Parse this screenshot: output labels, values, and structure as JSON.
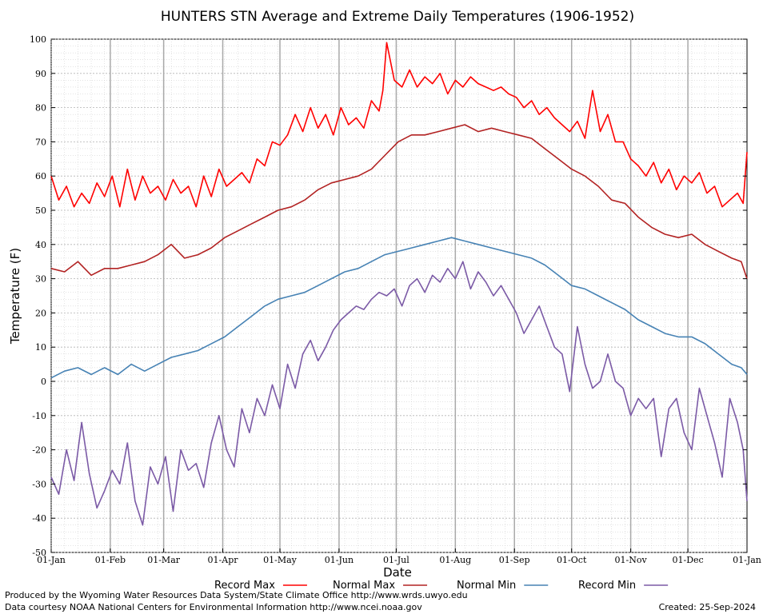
{
  "chart_data": {
    "type": "line",
    "title": "HUNTERS STN Average and Extreme Daily Temperatures (1906-1952)",
    "xlabel": "Date",
    "ylabel": "Temperature (F)",
    "ylim": [
      -50,
      100
    ],
    "yticks": [
      100,
      90,
      80,
      70,
      60,
      50,
      40,
      30,
      20,
      10,
      0,
      -10,
      -20,
      -30,
      -40,
      -50
    ],
    "xlim_day": [
      1,
      366
    ],
    "month_ticks": [
      {
        "label": "01-Jan",
        "day": 1
      },
      {
        "label": "01-Feb",
        "day": 32
      },
      {
        "label": "01-Mar",
        "day": 60
      },
      {
        "label": "01-Apr",
        "day": 91
      },
      {
        "label": "01-May",
        "day": 121
      },
      {
        "label": "01-Jun",
        "day": 152
      },
      {
        "label": "01-Jul",
        "day": 182
      },
      {
        "label": "01-Aug",
        "day": 213
      },
      {
        "label": "01-Sep",
        "day": 244
      },
      {
        "label": "01-Oct",
        "day": 274
      },
      {
        "label": "01-Nov",
        "day": 305
      },
      {
        "label": "01-Dec",
        "day": 335
      },
      {
        "label": "01-Jan",
        "day": 366
      }
    ],
    "grid": true,
    "legend_position": "bottom",
    "series": [
      {
        "name": "Record Max",
        "color": "#ff0000",
        "x": [
          1,
          5,
          9,
          13,
          17,
          21,
          25,
          29,
          33,
          37,
          41,
          45,
          49,
          53,
          57,
          61,
          65,
          69,
          73,
          77,
          81,
          85,
          89,
          93,
          97,
          101,
          105,
          109,
          113,
          117,
          121,
          125,
          129,
          133,
          137,
          141,
          145,
          149,
          153,
          157,
          161,
          165,
          169,
          173,
          175,
          177,
          181,
          185,
          189,
          193,
          197,
          201,
          205,
          209,
          213,
          217,
          221,
          225,
          229,
          233,
          237,
          241,
          245,
          249,
          253,
          257,
          261,
          265,
          269,
          273,
          277,
          281,
          285,
          289,
          293,
          297,
          301,
          305,
          309,
          313,
          317,
          321,
          325,
          329,
          333,
          337,
          341,
          345,
          349,
          353,
          357,
          361,
          364,
          366
        ],
        "values": [
          60,
          53,
          57,
          51,
          55,
          52,
          58,
          54,
          60,
          51,
          62,
          53,
          60,
          55,
          57,
          53,
          59,
          55,
          57,
          51,
          60,
          54,
          62,
          57,
          59,
          61,
          58,
          65,
          63,
          70,
          69,
          72,
          78,
          73,
          80,
          74,
          78,
          72,
          80,
          75,
          77,
          74,
          82,
          79,
          85,
          99,
          88,
          86,
          91,
          86,
          89,
          87,
          90,
          84,
          88,
          86,
          89,
          87,
          86,
          85,
          86,
          84,
          83,
          80,
          82,
          78,
          80,
          77,
          75,
          73,
          76,
          71,
          85,
          73,
          78,
          70,
          70,
          65,
          63,
          60,
          64,
          58,
          62,
          56,
          60,
          58,
          61,
          55,
          57,
          51,
          53,
          55,
          52,
          67
        ]
      },
      {
        "name": "Normal Max",
        "color": "#b22222",
        "x": [
          1,
          8,
          15,
          22,
          29,
          36,
          43,
          50,
          57,
          64,
          71,
          78,
          85,
          92,
          99,
          106,
          113,
          120,
          127,
          134,
          141,
          148,
          155,
          162,
          169,
          176,
          183,
          190,
          197,
          204,
          211,
          218,
          225,
          232,
          239,
          246,
          253,
          260,
          267,
          274,
          281,
          288,
          295,
          302,
          309,
          316,
          323,
          330,
          337,
          344,
          351,
          358,
          363,
          366
        ],
        "values": [
          33,
          32,
          35,
          31,
          33,
          33,
          34,
          35,
          37,
          40,
          36,
          37,
          39,
          42,
          44,
          46,
          48,
          50,
          51,
          53,
          56,
          58,
          59,
          60,
          62,
          66,
          70,
          72,
          72,
          73,
          74,
          75,
          73,
          74,
          73,
          72,
          71,
          68,
          65,
          62,
          60,
          57,
          53,
          52,
          48,
          45,
          43,
          42,
          43,
          40,
          38,
          36,
          35,
          30
        ]
      },
      {
        "name": "Normal Min",
        "color": "#4682b4",
        "x": [
          1,
          8,
          15,
          22,
          29,
          36,
          43,
          50,
          57,
          64,
          71,
          78,
          85,
          92,
          99,
          106,
          113,
          120,
          127,
          134,
          141,
          148,
          155,
          162,
          169,
          176,
          183,
          190,
          197,
          204,
          211,
          218,
          225,
          232,
          239,
          246,
          253,
          260,
          267,
          274,
          281,
          288,
          295,
          302,
          309,
          316,
          323,
          330,
          337,
          344,
          351,
          358,
          363,
          366
        ],
        "values": [
          1,
          3,
          4,
          2,
          4,
          2,
          5,
          3,
          5,
          7,
          8,
          9,
          11,
          13,
          16,
          19,
          22,
          24,
          25,
          26,
          28,
          30,
          32,
          33,
          35,
          37,
          38,
          39,
          40,
          41,
          42,
          41,
          40,
          39,
          38,
          37,
          36,
          34,
          31,
          28,
          27,
          25,
          23,
          21,
          18,
          16,
          14,
          13,
          13,
          11,
          8,
          5,
          4,
          2
        ]
      },
      {
        "name": "Record Min",
        "color": "#7b5aa6",
        "x": [
          1,
          5,
          9,
          13,
          17,
          21,
          25,
          29,
          33,
          37,
          41,
          45,
          49,
          53,
          57,
          61,
          65,
          69,
          73,
          77,
          81,
          85,
          89,
          93,
          97,
          101,
          105,
          109,
          113,
          117,
          121,
          125,
          129,
          133,
          137,
          141,
          145,
          149,
          153,
          157,
          161,
          165,
          169,
          173,
          177,
          181,
          185,
          189,
          193,
          197,
          201,
          205,
          209,
          213,
          217,
          221,
          225,
          229,
          233,
          237,
          241,
          245,
          249,
          253,
          257,
          261,
          265,
          269,
          273,
          277,
          281,
          285,
          289,
          293,
          297,
          301,
          305,
          309,
          313,
          317,
          321,
          325,
          329,
          333,
          337,
          341,
          345,
          349,
          353,
          357,
          361,
          364,
          366
        ],
        "values": [
          -28,
          -33,
          -20,
          -29,
          -12,
          -27,
          -37,
          -32,
          -26,
          -30,
          -18,
          -35,
          -42,
          -25,
          -30,
          -22,
          -38,
          -20,
          -26,
          -24,
          -31,
          -18,
          -10,
          -20,
          -25,
          -8,
          -15,
          -5,
          -10,
          -1,
          -8,
          5,
          -2,
          8,
          12,
          6,
          10,
          15,
          18,
          20,
          22,
          21,
          24,
          26,
          25,
          27,
          22,
          28,
          30,
          26,
          31,
          29,
          33,
          30,
          35,
          27,
          32,
          29,
          25,
          28,
          24,
          20,
          14,
          18,
          22,
          16,
          10,
          8,
          -3,
          16,
          5,
          -2,
          0,
          8,
          0,
          -2,
          -10,
          -5,
          -8,
          -5,
          -22,
          -8,
          -5,
          -15,
          -20,
          -2,
          -10,
          -18,
          -28,
          -5,
          -12,
          -20,
          -35
        ]
      }
    ]
  },
  "footer": {
    "left_line1": "Produced by the Wyoming Water Resources Data System/State Climate Office http://www.wrds.uwyo.edu",
    "left_line2": "Data courtesy NOAA National Centers for Environmental Information http://www.ncei.noaa.gov",
    "created": "Created:  25-Sep-2024"
  }
}
